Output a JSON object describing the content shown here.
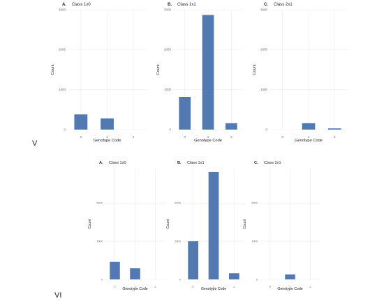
{
  "figure": {
    "row_labels": [
      "V",
      "VI"
    ]
  },
  "style": {
    "bar_color": "#5279b1",
    "grid_color": "#ebebeb",
    "text_color": "#222222",
    "tick_color": "#6b6b6b"
  },
  "chart_data": [
    {
      "type": "bar",
      "row": "V",
      "letter": "A.",
      "title": "Class 1x0",
      "categories": [
        "0",
        "1",
        "2"
      ],
      "values": [
        380,
        280,
        0
      ],
      "xlabel": "Genotype Code",
      "ylabel": "Count",
      "ylim": [
        0,
        3000
      ],
      "yticks": [
        0,
        1000,
        2000,
        3000
      ],
      "grid": true
    },
    {
      "type": "bar",
      "row": "V",
      "letter": "B.",
      "title": "Class 1x1",
      "categories": [
        "0",
        "1",
        "2"
      ],
      "values": [
        820,
        2870,
        160
      ],
      "xlabel": "Genotype Code",
      "ylabel": "Count",
      "ylim": [
        0,
        3000
      ],
      "yticks": [
        0,
        1000,
        2000,
        3000
      ],
      "grid": true
    },
    {
      "type": "bar",
      "row": "V",
      "letter": "C.",
      "title": "Class 2x1",
      "categories": [
        "0",
        "1",
        "2"
      ],
      "values": [
        0,
        160,
        30
      ],
      "xlabel": "Genotype Code",
      "ylabel": "Count",
      "ylim": [
        0,
        3000
      ],
      "yticks": [
        0,
        1000,
        2000,
        3000
      ],
      "grid": true
    },
    {
      "type": "bar",
      "row": "VI",
      "letter": "A.",
      "title": "Class 1x0",
      "categories": [
        "0",
        "1",
        "2"
      ],
      "values": [
        460,
        290,
        0
      ],
      "xlabel": "Genotype Code",
      "ylabel": "Count",
      "ylim": [
        0,
        2900
      ],
      "yticks": [
        0,
        1000,
        2000
      ],
      "grid": true
    },
    {
      "type": "bar",
      "row": "VI",
      "letter": "B.",
      "title": "Class 1x1",
      "categories": [
        "0",
        "1",
        "2"
      ],
      "values": [
        1000,
        2810,
        160
      ],
      "xlabel": "Genotype Code",
      "ylabel": "Count",
      "ylim": [
        0,
        2900
      ],
      "yticks": [
        0,
        1000,
        2000
      ],
      "grid": true
    },
    {
      "type": "bar",
      "row": "VI",
      "letter": "C.",
      "title": "Class 2x1",
      "categories": [
        "0",
        "1",
        "2"
      ],
      "values": [
        0,
        130,
        0
      ],
      "xlabel": "Genotype Code",
      "ylabel": "Count",
      "ylim": [
        0,
        2900
      ],
      "yticks": [
        0,
        1000,
        2000
      ],
      "grid": true
    }
  ]
}
